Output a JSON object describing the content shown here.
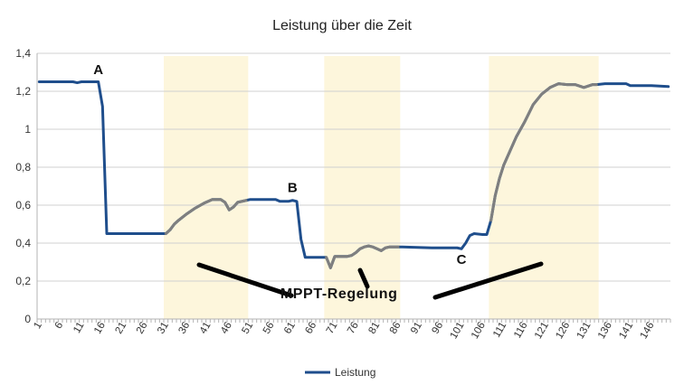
{
  "chart_data": {
    "type": "line",
    "title": "Leistung über die Zeit",
    "xlabel": "",
    "ylabel": "",
    "ylim": [
      0,
      1.4
    ],
    "yticks": [
      "0",
      "0,2",
      "0,4",
      "0,6",
      "0,8",
      "1",
      "1,2",
      "1,4"
    ],
    "x_categories_count": 150,
    "xtick_labels": [
      "1",
      "6",
      "11",
      "16",
      "21",
      "26",
      "31",
      "36",
      "41",
      "46",
      "51",
      "56",
      "61",
      "66",
      "71",
      "76",
      "81",
      "86",
      "91",
      "96",
      "101",
      "106",
      "111",
      "116",
      "121",
      "126",
      "131",
      "136",
      "141",
      "146"
    ],
    "grid": "horizontal",
    "legend_position": "bottom",
    "series": [
      {
        "name": "Leistung",
        "color": "#1f4e8c",
        "points": [
          [
            1,
            1.25
          ],
          [
            5,
            1.25
          ],
          [
            9,
            1.25
          ],
          [
            10,
            1.245
          ],
          [
            11,
            1.25
          ],
          [
            14,
            1.25
          ],
          [
            15,
            1.25
          ],
          [
            16,
            1.12
          ],
          [
            17,
            0.45
          ],
          [
            31,
            0.45
          ],
          [
            32,
            0.47
          ],
          [
            33,
            0.5
          ],
          [
            34,
            0.52
          ],
          [
            36,
            0.555
          ],
          [
            38,
            0.585
          ],
          [
            40,
            0.61
          ],
          [
            42,
            0.63
          ],
          [
            44,
            0.63
          ],
          [
            45,
            0.615
          ],
          [
            46,
            0.575
          ],
          [
            47,
            0.59
          ],
          [
            48,
            0.615
          ],
          [
            50,
            0.625
          ],
          [
            51,
            0.63
          ],
          [
            56,
            0.63
          ],
          [
            57,
            0.63
          ],
          [
            58,
            0.62
          ],
          [
            60,
            0.62
          ],
          [
            61,
            0.625
          ],
          [
            62,
            0.62
          ],
          [
            63,
            0.42
          ],
          [
            64,
            0.325
          ],
          [
            68,
            0.325
          ],
          [
            69,
            0.325
          ],
          [
            70,
            0.27
          ],
          [
            71,
            0.33
          ],
          [
            74,
            0.33
          ],
          [
            75,
            0.335
          ],
          [
            76,
            0.35
          ],
          [
            77,
            0.37
          ],
          [
            78,
            0.38
          ],
          [
            79,
            0.385
          ],
          [
            80,
            0.38
          ],
          [
            81,
            0.37
          ],
          [
            82,
            0.36
          ],
          [
            83,
            0.375
          ],
          [
            84,
            0.38
          ],
          [
            86,
            0.38
          ],
          [
            87,
            0.38
          ],
          [
            94,
            0.375
          ],
          [
            100,
            0.375
          ],
          [
            101,
            0.37
          ],
          [
            102,
            0.4
          ],
          [
            103,
            0.44
          ],
          [
            104,
            0.45
          ],
          [
            106,
            0.445
          ],
          [
            107,
            0.445
          ],
          [
            108,
            0.52
          ],
          [
            109,
            0.65
          ],
          [
            110,
            0.74
          ],
          [
            111,
            0.81
          ],
          [
            112,
            0.86
          ],
          [
            114,
            0.96
          ],
          [
            116,
            1.04
          ],
          [
            118,
            1.13
          ],
          [
            120,
            1.185
          ],
          [
            122,
            1.22
          ],
          [
            124,
            1.24
          ],
          [
            126,
            1.235
          ],
          [
            128,
            1.235
          ],
          [
            130,
            1.22
          ],
          [
            132,
            1.235
          ],
          [
            133,
            1.235
          ],
          [
            135,
            1.24
          ],
          [
            140,
            1.24
          ],
          [
            141,
            1.23
          ],
          [
            146,
            1.23
          ],
          [
            150,
            1.225
          ]
        ]
      }
    ],
    "highlight_regions": [
      {
        "from": 31,
        "to": 50,
        "color": "#fdf6dc"
      },
      {
        "from": 69,
        "to": 86,
        "color": "#fdf6dc"
      },
      {
        "from": 108,
        "to": 133,
        "color": "#fdf6dc"
      }
    ],
    "mppt_segments": [
      [
        31,
        50
      ],
      [
        69,
        86
      ],
      [
        108,
        133
      ]
    ],
    "mppt_color": "#7f7f7f",
    "annotations": [
      {
        "text": "A",
        "x": 15,
        "y": 1.29
      },
      {
        "text": "B",
        "x": 61,
        "y": 0.67
      },
      {
        "text": "C",
        "x": 101,
        "y": 0.29
      },
      {
        "text": "MPPT-Regelung",
        "x": 72,
        "y": 0.11
      }
    ]
  }
}
